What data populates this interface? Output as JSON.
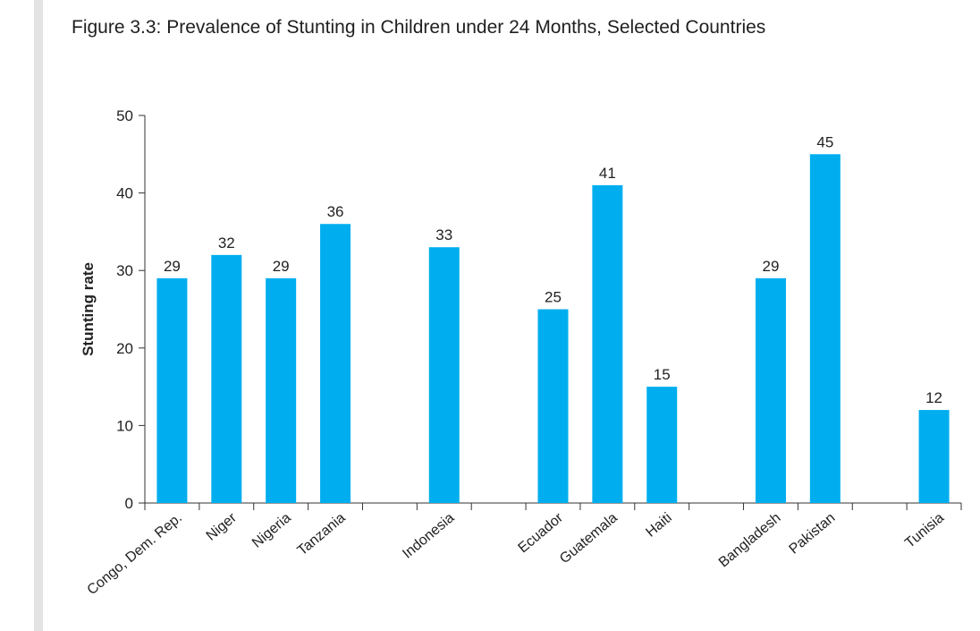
{
  "figure": {
    "title": "Figure 3.3: Prevalence of Stunting in Children under 24 Months, Selected Countries"
  },
  "colors": {
    "bar": "#00aeef",
    "axis": "#333333",
    "text": "#222222"
  },
  "chart_data": {
    "type": "bar",
    "title": "Figure 3.3: Prevalence of Stunting in Children under 24 Months, Selected Countries",
    "xlabel": "",
    "ylabel": "Stunting rate",
    "ylim": [
      0,
      50
    ],
    "yticks": [
      0,
      10,
      20,
      30,
      40,
      50
    ],
    "grid": false,
    "legend": "none",
    "categories": [
      "Congo, Dem. Rep.",
      "Niger",
      "Nigeria",
      "Tanzania",
      "",
      "Indonesia",
      "",
      "Ecuador",
      "Guatemala",
      "Haiti",
      "",
      "Bangladesh",
      "Pakistan",
      "",
      "Tunisia"
    ],
    "values": [
      29,
      32,
      29,
      36,
      null,
      33,
      null,
      25,
      41,
      15,
      null,
      29,
      45,
      null,
      12
    ],
    "data_labels": [
      "29",
      "32",
      "29",
      "36",
      "",
      "33",
      "",
      "25",
      "41",
      "15",
      "",
      "29",
      "45",
      "",
      "12"
    ]
  }
}
